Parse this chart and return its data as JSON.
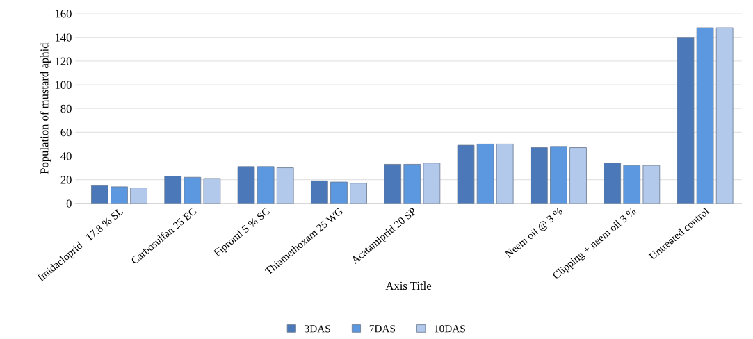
{
  "chart_data": {
    "type": "bar",
    "xlabel": "Axis Title",
    "ylabel": "Population of mustard aphid",
    "categories": [
      "Imidacloprid   17.8 % SL",
      "Carbosulfan 25 EC",
      "Fipronil 5 % SC",
      "Thiamethoxam 25 WG",
      "Acatamiprid 20 SP",
      null,
      "Neem oil @ 3 %",
      "Clipping + neem oil 3 %",
      "Untreated control"
    ],
    "series": [
      {
        "name": "3DAS",
        "color": "#4a78b8",
        "values": [
          15,
          23,
          31,
          19,
          33,
          49,
          47,
          34,
          140
        ]
      },
      {
        "name": "7DAS",
        "color": "#5b98e0",
        "values": [
          14,
          22,
          31,
          18,
          33,
          50,
          48,
          32,
          148
        ]
      },
      {
        "name": "10DAS",
        "color": "#b3c9ec",
        "values": [
          13,
          21,
          30,
          17,
          34,
          50,
          47,
          32,
          148
        ]
      }
    ],
    "ylim": [
      0,
      160
    ],
    "yticks": [
      0,
      20,
      40,
      60,
      80,
      100,
      120,
      140,
      160
    ],
    "grid": "y",
    "legend": "bottom"
  }
}
